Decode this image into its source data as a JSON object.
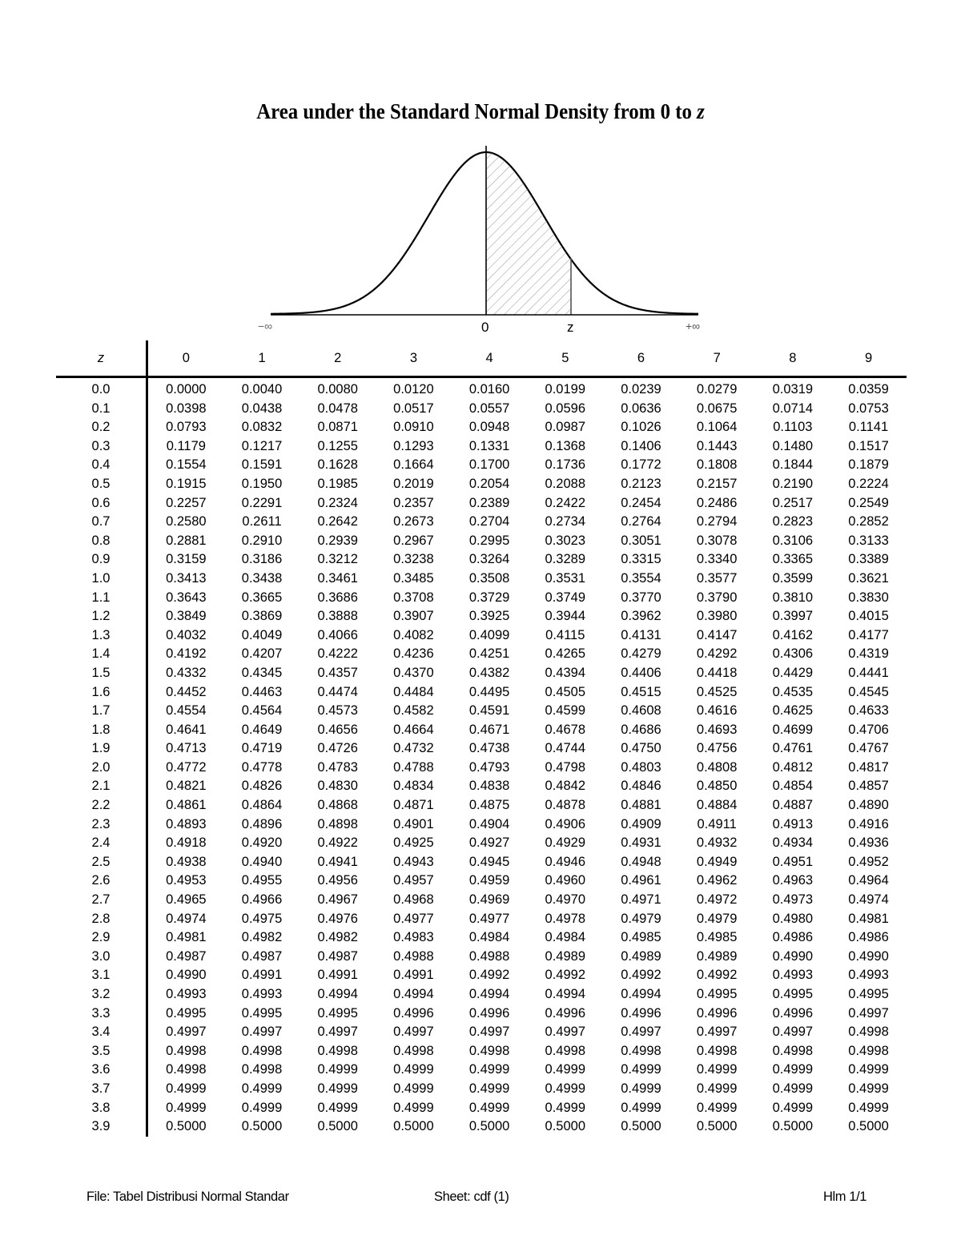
{
  "document": {
    "title_prefix": "Area under the Standard Normal Density from 0 to ",
    "title_var": "z",
    "figure": {
      "labels": {
        "neg_inf": "−∞",
        "zero": "0",
        "z": "z",
        "pos_inf": "+∞"
      },
      "shaded_region": "from 0 to z"
    },
    "footer": {
      "file": "File: Tabel Distribusi Normal Standar",
      "sheet": "Sheet: cdf (1)",
      "page": "Hlm 1/1"
    }
  },
  "chart_data": {
    "type": "table",
    "title": "Area under the Standard Normal Density from 0 to z",
    "row_header": "z",
    "columns": [
      "0",
      "1",
      "2",
      "3",
      "4",
      "5",
      "6",
      "7",
      "8",
      "9"
    ],
    "rows": [
      {
        "z": "0.0",
        "values": [
          "0.0000",
          "0.0040",
          "0.0080",
          "0.0120",
          "0.0160",
          "0.0199",
          "0.0239",
          "0.0279",
          "0.0319",
          "0.0359"
        ]
      },
      {
        "z": "0.1",
        "values": [
          "0.0398",
          "0.0438",
          "0.0478",
          "0.0517",
          "0.0557",
          "0.0596",
          "0.0636",
          "0.0675",
          "0.0714",
          "0.0753"
        ]
      },
      {
        "z": "0.2",
        "values": [
          "0.0793",
          "0.0832",
          "0.0871",
          "0.0910",
          "0.0948",
          "0.0987",
          "0.1026",
          "0.1064",
          "0.1103",
          "0.1141"
        ]
      },
      {
        "z": "0.3",
        "values": [
          "0.1179",
          "0.1217",
          "0.1255",
          "0.1293",
          "0.1331",
          "0.1368",
          "0.1406",
          "0.1443",
          "0.1480",
          "0.1517"
        ]
      },
      {
        "z": "0.4",
        "values": [
          "0.1554",
          "0.1591",
          "0.1628",
          "0.1664",
          "0.1700",
          "0.1736",
          "0.1772",
          "0.1808",
          "0.1844",
          "0.1879"
        ]
      },
      {
        "z": "0.5",
        "values": [
          "0.1915",
          "0.1950",
          "0.1985",
          "0.2019",
          "0.2054",
          "0.2088",
          "0.2123",
          "0.2157",
          "0.2190",
          "0.2224"
        ]
      },
      {
        "z": "0.6",
        "values": [
          "0.2257",
          "0.2291",
          "0.2324",
          "0.2357",
          "0.2389",
          "0.2422",
          "0.2454",
          "0.2486",
          "0.2517",
          "0.2549"
        ]
      },
      {
        "z": "0.7",
        "values": [
          "0.2580",
          "0.2611",
          "0.2642",
          "0.2673",
          "0.2704",
          "0.2734",
          "0.2764",
          "0.2794",
          "0.2823",
          "0.2852"
        ]
      },
      {
        "z": "0.8",
        "values": [
          "0.2881",
          "0.2910",
          "0.2939",
          "0.2967",
          "0.2995",
          "0.3023",
          "0.3051",
          "0.3078",
          "0.3106",
          "0.3133"
        ]
      },
      {
        "z": "0.9",
        "values": [
          "0.3159",
          "0.3186",
          "0.3212",
          "0.3238",
          "0.3264",
          "0.3289",
          "0.3315",
          "0.3340",
          "0.3365",
          "0.3389"
        ]
      },
      {
        "z": "1.0",
        "values": [
          "0.3413",
          "0.3438",
          "0.3461",
          "0.3485",
          "0.3508",
          "0.3531",
          "0.3554",
          "0.3577",
          "0.3599",
          "0.3621"
        ]
      },
      {
        "z": "1.1",
        "values": [
          "0.3643",
          "0.3665",
          "0.3686",
          "0.3708",
          "0.3729",
          "0.3749",
          "0.3770",
          "0.3790",
          "0.3810",
          "0.3830"
        ]
      },
      {
        "z": "1.2",
        "values": [
          "0.3849",
          "0.3869",
          "0.3888",
          "0.3907",
          "0.3925",
          "0.3944",
          "0.3962",
          "0.3980",
          "0.3997",
          "0.4015"
        ]
      },
      {
        "z": "1.3",
        "values": [
          "0.4032",
          "0.4049",
          "0.4066",
          "0.4082",
          "0.4099",
          "0.4115",
          "0.4131",
          "0.4147",
          "0.4162",
          "0.4177"
        ]
      },
      {
        "z": "1.4",
        "values": [
          "0.4192",
          "0.4207",
          "0.4222",
          "0.4236",
          "0.4251",
          "0.4265",
          "0.4279",
          "0.4292",
          "0.4306",
          "0.4319"
        ]
      },
      {
        "z": "1.5",
        "values": [
          "0.4332",
          "0.4345",
          "0.4357",
          "0.4370",
          "0.4382",
          "0.4394",
          "0.4406",
          "0.4418",
          "0.4429",
          "0.4441"
        ]
      },
      {
        "z": "1.6",
        "values": [
          "0.4452",
          "0.4463",
          "0.4474",
          "0.4484",
          "0.4495",
          "0.4505",
          "0.4515",
          "0.4525",
          "0.4535",
          "0.4545"
        ]
      },
      {
        "z": "1.7",
        "values": [
          "0.4554",
          "0.4564",
          "0.4573",
          "0.4582",
          "0.4591",
          "0.4599",
          "0.4608",
          "0.4616",
          "0.4625",
          "0.4633"
        ]
      },
      {
        "z": "1.8",
        "values": [
          "0.4641",
          "0.4649",
          "0.4656",
          "0.4664",
          "0.4671",
          "0.4678",
          "0.4686",
          "0.4693",
          "0.4699",
          "0.4706"
        ]
      },
      {
        "z": "1.9",
        "values": [
          "0.4713",
          "0.4719",
          "0.4726",
          "0.4732",
          "0.4738",
          "0.4744",
          "0.4750",
          "0.4756",
          "0.4761",
          "0.4767"
        ]
      },
      {
        "z": "2.0",
        "values": [
          "0.4772",
          "0.4778",
          "0.4783",
          "0.4788",
          "0.4793",
          "0.4798",
          "0.4803",
          "0.4808",
          "0.4812",
          "0.4817"
        ]
      },
      {
        "z": "2.1",
        "values": [
          "0.4821",
          "0.4826",
          "0.4830",
          "0.4834",
          "0.4838",
          "0.4842",
          "0.4846",
          "0.4850",
          "0.4854",
          "0.4857"
        ]
      },
      {
        "z": "2.2",
        "values": [
          "0.4861",
          "0.4864",
          "0.4868",
          "0.4871",
          "0.4875",
          "0.4878",
          "0.4881",
          "0.4884",
          "0.4887",
          "0.4890"
        ]
      },
      {
        "z": "2.3",
        "values": [
          "0.4893",
          "0.4896",
          "0.4898",
          "0.4901",
          "0.4904",
          "0.4906",
          "0.4909",
          "0.4911",
          "0.4913",
          "0.4916"
        ]
      },
      {
        "z": "2.4",
        "values": [
          "0.4918",
          "0.4920",
          "0.4922",
          "0.4925",
          "0.4927",
          "0.4929",
          "0.4931",
          "0.4932",
          "0.4934",
          "0.4936"
        ]
      },
      {
        "z": "2.5",
        "values": [
          "0.4938",
          "0.4940",
          "0.4941",
          "0.4943",
          "0.4945",
          "0.4946",
          "0.4948",
          "0.4949",
          "0.4951",
          "0.4952"
        ]
      },
      {
        "z": "2.6",
        "values": [
          "0.4953",
          "0.4955",
          "0.4956",
          "0.4957",
          "0.4959",
          "0.4960",
          "0.4961",
          "0.4962",
          "0.4963",
          "0.4964"
        ]
      },
      {
        "z": "2.7",
        "values": [
          "0.4965",
          "0.4966",
          "0.4967",
          "0.4968",
          "0.4969",
          "0.4970",
          "0.4971",
          "0.4972",
          "0.4973",
          "0.4974"
        ]
      },
      {
        "z": "2.8",
        "values": [
          "0.4974",
          "0.4975",
          "0.4976",
          "0.4977",
          "0.4977",
          "0.4978",
          "0.4979",
          "0.4979",
          "0.4980",
          "0.4981"
        ]
      },
      {
        "z": "2.9",
        "values": [
          "0.4981",
          "0.4982",
          "0.4982",
          "0.4983",
          "0.4984",
          "0.4984",
          "0.4985",
          "0.4985",
          "0.4986",
          "0.4986"
        ]
      },
      {
        "z": "3.0",
        "values": [
          "0.4987",
          "0.4987",
          "0.4987",
          "0.4988",
          "0.4988",
          "0.4989",
          "0.4989",
          "0.4989",
          "0.4990",
          "0.4990"
        ]
      },
      {
        "z": "3.1",
        "values": [
          "0.4990",
          "0.4991",
          "0.4991",
          "0.4991",
          "0.4992",
          "0.4992",
          "0.4992",
          "0.4992",
          "0.4993",
          "0.4993"
        ]
      },
      {
        "z": "3.2",
        "values": [
          "0.4993",
          "0.4993",
          "0.4994",
          "0.4994",
          "0.4994",
          "0.4994",
          "0.4994",
          "0.4995",
          "0.4995",
          "0.4995"
        ]
      },
      {
        "z": "3.3",
        "values": [
          "0.4995",
          "0.4995",
          "0.4995",
          "0.4996",
          "0.4996",
          "0.4996",
          "0.4996",
          "0.4996",
          "0.4996",
          "0.4997"
        ]
      },
      {
        "z": "3.4",
        "values": [
          "0.4997",
          "0.4997",
          "0.4997",
          "0.4997",
          "0.4997",
          "0.4997",
          "0.4997",
          "0.4997",
          "0.4997",
          "0.4998"
        ]
      },
      {
        "z": "3.5",
        "values": [
          "0.4998",
          "0.4998",
          "0.4998",
          "0.4998",
          "0.4998",
          "0.4998",
          "0.4998",
          "0.4998",
          "0.4998",
          "0.4998"
        ]
      },
      {
        "z": "3.6",
        "values": [
          "0.4998",
          "0.4998",
          "0.4999",
          "0.4999",
          "0.4999",
          "0.4999",
          "0.4999",
          "0.4999",
          "0.4999",
          "0.4999"
        ]
      },
      {
        "z": "3.7",
        "values": [
          "0.4999",
          "0.4999",
          "0.4999",
          "0.4999",
          "0.4999",
          "0.4999",
          "0.4999",
          "0.4999",
          "0.4999",
          "0.4999"
        ]
      },
      {
        "z": "3.8",
        "values": [
          "0.4999",
          "0.4999",
          "0.4999",
          "0.4999",
          "0.4999",
          "0.4999",
          "0.4999",
          "0.4999",
          "0.4999",
          "0.4999"
        ]
      },
      {
        "z": "3.9",
        "values": [
          "0.5000",
          "0.5000",
          "0.5000",
          "0.5000",
          "0.5000",
          "0.5000",
          "0.5000",
          "0.5000",
          "0.5000",
          "0.5000"
        ]
      }
    ]
  }
}
